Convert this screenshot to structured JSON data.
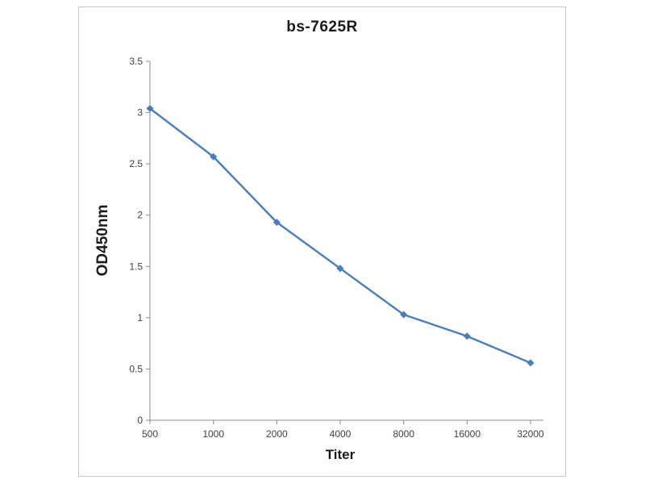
{
  "figure": {
    "background_color": "#ffffff",
    "frame_border_color": "#c8c8c8"
  },
  "chart_data": {
    "type": "line",
    "title": "bs-7625R",
    "xlabel": "Titer",
    "ylabel": "OD450nm",
    "categories": [
      "500",
      "1000",
      "2000",
      "4000",
      "8000",
      "16000",
      "32000"
    ],
    "series": [
      {
        "name": "bs-7625R",
        "values": [
          3.04,
          2.57,
          1.93,
          1.48,
          1.03,
          0.82,
          0.56
        ],
        "color": "#4a7ebb",
        "marker": "diamond"
      }
    ],
    "ylim": [
      0,
      3.5
    ],
    "ytick_step": 0.5,
    "ytick_labels": [
      "0",
      "0.5",
      "1",
      "1.5",
      "2",
      "2.5",
      "3",
      "3.5"
    ],
    "grid": false,
    "legend": "none",
    "axis_color": "#8c8c8c",
    "tick_label_color": "#3f3f3f"
  }
}
